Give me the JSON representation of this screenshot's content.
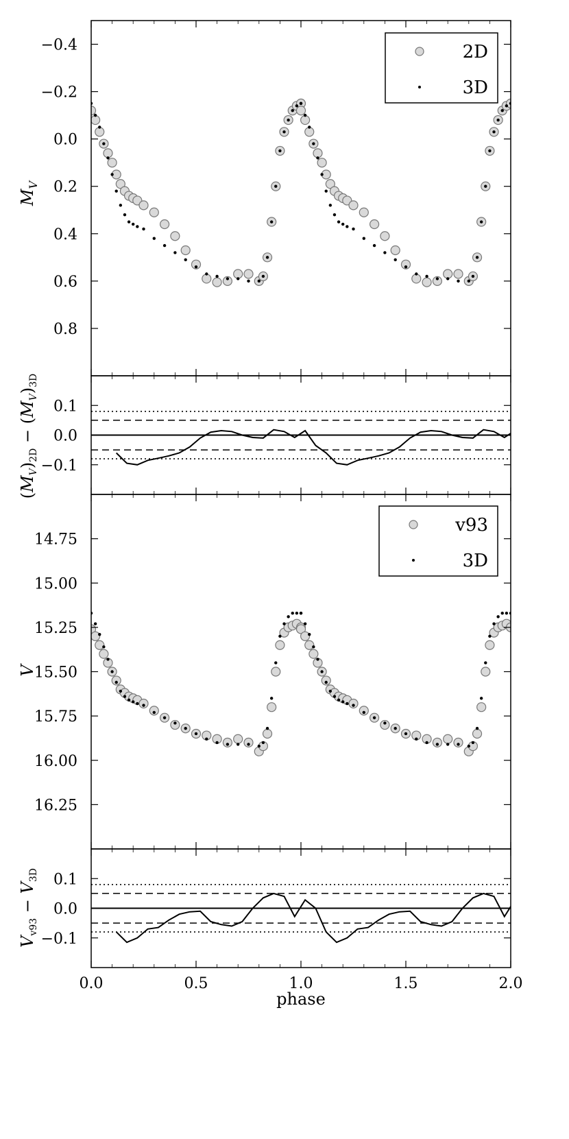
{
  "chart_data": [
    {
      "type": "scatter",
      "panel": "absolute magnitude light curve",
      "xlabel": "",
      "ylabel": "M_V",
      "ylabel_parts": {
        "main": "M",
        "sub": "V"
      },
      "xlim": [
        0.0,
        2.0
      ],
      "ylim": [
        1.0,
        -0.5
      ],
      "y_inverted": true,
      "yticks": [
        "−0.4",
        "−0.2",
        "0.0",
        "0.2",
        "0.4",
        "0.6",
        "0.8"
      ],
      "ytick_values": [
        -0.4,
        -0.2,
        0.0,
        0.2,
        0.4,
        0.6,
        0.8
      ],
      "legend": {
        "placement": "upper-right",
        "entries": [
          "2D",
          "3D"
        ]
      },
      "series": [
        {
          "name": "2D",
          "marker": "open circle",
          "color": "#d9d9d9",
          "edge": "#777777",
          "x": [
            0.0,
            0.02,
            0.04,
            0.06,
            0.08,
            0.1,
            0.12,
            0.14,
            0.16,
            0.18,
            0.2,
            0.22,
            0.25,
            0.3,
            0.35,
            0.4,
            0.45,
            0.5,
            0.55,
            0.6,
            0.65,
            0.7,
            0.75,
            0.8,
            0.82,
            0.84,
            0.86,
            0.88,
            0.9,
            0.92,
            0.94,
            0.96,
            0.98,
            1.0
          ],
          "y": [
            -0.12,
            -0.08,
            -0.03,
            0.02,
            0.06,
            0.1,
            0.15,
            0.19,
            0.22,
            0.24,
            0.25,
            0.26,
            0.28,
            0.31,
            0.36,
            0.41,
            0.47,
            0.53,
            0.59,
            0.605,
            0.6,
            0.57,
            0.57,
            0.6,
            0.58,
            0.5,
            0.35,
            0.2,
            0.05,
            -0.03,
            -0.08,
            -0.12,
            -0.14,
            -0.15
          ]
        },
        {
          "name": "3D",
          "marker": "dot",
          "color": "#000000",
          "x": [
            0.0,
            0.02,
            0.04,
            0.06,
            0.08,
            0.1,
            0.12,
            0.14,
            0.16,
            0.18,
            0.2,
            0.22,
            0.25,
            0.3,
            0.35,
            0.4,
            0.45,
            0.5,
            0.55,
            0.6,
            0.65,
            0.7,
            0.75,
            0.8,
            0.82,
            0.84,
            0.86,
            0.88,
            0.9,
            0.92,
            0.94,
            0.96,
            0.98,
            1.0
          ],
          "y": [
            -0.15,
            -0.1,
            -0.05,
            0.02,
            0.08,
            0.15,
            0.22,
            0.28,
            0.32,
            0.35,
            0.36,
            0.37,
            0.38,
            0.42,
            0.45,
            0.48,
            0.51,
            0.54,
            0.57,
            0.58,
            0.59,
            0.59,
            0.6,
            0.6,
            0.58,
            0.5,
            0.35,
            0.2,
            0.05,
            -0.03,
            -0.08,
            -0.12,
            -0.14,
            -0.15
          ]
        }
      ]
    },
    {
      "type": "line",
      "panel": "2D minus 3D residual",
      "xlabel": "",
      "ylabel": "(M_V)_2D − (M_V)_3D",
      "ylabel_parts": {
        "open": "(",
        "main1": "M",
        "sub1": "V",
        "mid": ")",
        "sub2": "2D",
        "minus": " − (",
        "main2": "M",
        "sub3": "V",
        "close": ")",
        "sub4": "3D"
      },
      "xlim": [
        0.0,
        2.0
      ],
      "ylim": [
        -0.2,
        0.2
      ],
      "yticks": [
        "0.1",
        "0.0",
        "−0.1"
      ],
      "ytick_values": [
        0.1,
        0.0,
        -0.1
      ],
      "hlines": {
        "solid": [
          0.0
        ],
        "dashed": [
          0.05,
          -0.05
        ],
        "dotted": [
          0.08,
          -0.08
        ]
      },
      "series": [
        {
          "x": [
            0.12,
            0.17,
            0.22,
            0.27,
            0.32,
            0.37,
            0.42,
            0.47,
            0.52,
            0.57,
            0.62,
            0.67,
            0.72,
            0.77,
            0.82,
            0.87,
            0.92,
            0.97,
            1.02,
            1.07
          ],
          "y": [
            -0.06,
            -0.095,
            -0.1,
            -0.085,
            -0.078,
            -0.07,
            -0.06,
            -0.04,
            -0.01,
            0.01,
            0.015,
            0.012,
            0.0,
            -0.008,
            -0.01,
            0.018,
            0.012,
            -0.008,
            0.015,
            -0.035
          ]
        }
      ]
    },
    {
      "type": "scatter",
      "panel": "apparent magnitude light curve",
      "xlabel": "",
      "ylabel": "V",
      "xlim": [
        0.0,
        2.0
      ],
      "ylim": [
        16.5,
        14.5
      ],
      "y_inverted": true,
      "yticks": [
        "14.75",
        "15.00",
        "15.25",
        "15.50",
        "15.75",
        "16.00",
        "16.25"
      ],
      "ytick_values": [
        14.75,
        15.0,
        15.25,
        15.5,
        15.75,
        16.0,
        16.25
      ],
      "legend": {
        "placement": "upper-right",
        "entries": [
          "v93",
          "3D"
        ]
      },
      "series": [
        {
          "name": "v93",
          "marker": "open circle",
          "color": "#d9d9d9",
          "edge": "#777777",
          "x": [
            0.0,
            0.02,
            0.04,
            0.06,
            0.08,
            0.1,
            0.12,
            0.14,
            0.16,
            0.18,
            0.2,
            0.22,
            0.25,
            0.3,
            0.35,
            0.4,
            0.45,
            0.5,
            0.55,
            0.6,
            0.65,
            0.7,
            0.75,
            0.8,
            0.82,
            0.84,
            0.86,
            0.88,
            0.9,
            0.92,
            0.94,
            0.96,
            0.98,
            1.0
          ],
          "y": [
            15.26,
            15.3,
            15.35,
            15.4,
            15.45,
            15.5,
            15.55,
            15.6,
            15.62,
            15.64,
            15.65,
            15.66,
            15.68,
            15.72,
            15.76,
            15.8,
            15.82,
            15.85,
            15.86,
            15.88,
            15.9,
            15.88,
            15.9,
            15.95,
            15.92,
            15.85,
            15.7,
            15.5,
            15.35,
            15.28,
            15.25,
            15.24,
            15.23,
            15.25
          ]
        },
        {
          "name": "3D",
          "marker": "dot",
          "color": "#000000",
          "x": [
            0.0,
            0.02,
            0.04,
            0.06,
            0.08,
            0.1,
            0.12,
            0.14,
            0.16,
            0.18,
            0.2,
            0.22,
            0.25,
            0.3,
            0.35,
            0.4,
            0.45,
            0.5,
            0.55,
            0.6,
            0.65,
            0.7,
            0.75,
            0.8,
            0.82,
            0.84,
            0.86,
            0.88,
            0.9,
            0.92,
            0.94,
            0.96,
            0.98,
            1.0
          ],
          "y": [
            15.17,
            15.23,
            15.29,
            15.36,
            15.43,
            15.5,
            15.56,
            15.61,
            15.64,
            15.66,
            15.67,
            15.68,
            15.69,
            15.73,
            15.76,
            15.79,
            15.82,
            15.85,
            15.88,
            15.9,
            15.91,
            15.91,
            15.91,
            15.92,
            15.9,
            15.82,
            15.65,
            15.45,
            15.3,
            15.23,
            15.19,
            15.17,
            15.17,
            15.17
          ]
        }
      ]
    },
    {
      "type": "line",
      "panel": "v93 minus 3D residual",
      "xlabel": "phase",
      "ylabel": "V_v93 − V_3D",
      "ylabel_parts": {
        "main1": "V",
        "sub1": "v93",
        "minus": " − ",
        "main2": "V",
        "sub2": "3D"
      },
      "xlim": [
        0.0,
        2.0
      ],
      "ylim": [
        -0.2,
        0.2
      ],
      "xticks": [
        "0.0",
        "0.5",
        "1.0",
        "1.5",
        "2.0"
      ],
      "xtick_values": [
        0.0,
        0.5,
        1.0,
        1.5,
        2.0
      ],
      "yticks": [
        "0.1",
        "0.0",
        "−0.1"
      ],
      "ytick_values": [
        0.1,
        0.0,
        -0.1
      ],
      "hlines": {
        "solid": [
          0.0
        ],
        "dashed": [
          0.05,
          -0.05
        ],
        "dotted": [
          0.08,
          -0.08
        ]
      },
      "series": [
        {
          "x": [
            0.12,
            0.17,
            0.22,
            0.27,
            0.32,
            0.37,
            0.42,
            0.47,
            0.52,
            0.57,
            0.62,
            0.67,
            0.72,
            0.77,
            0.82,
            0.87,
            0.92,
            0.97,
            1.02,
            1.07
          ],
          "y": [
            -0.08,
            -0.115,
            -0.1,
            -0.07,
            -0.065,
            -0.04,
            -0.02,
            -0.012,
            -0.01,
            -0.045,
            -0.055,
            -0.06,
            -0.045,
            0.0,
            0.035,
            0.05,
            0.04,
            -0.028,
            0.028,
            0.0
          ]
        }
      ]
    }
  ]
}
